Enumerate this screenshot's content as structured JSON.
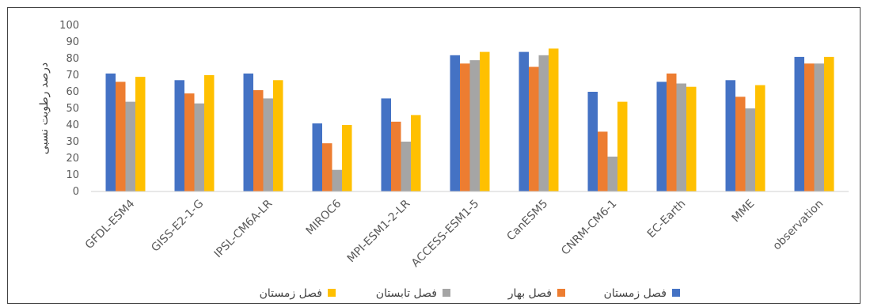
{
  "chart_data": {
    "type": "bar",
    "categories": [
      "GFDL-ESM4",
      "GISS-E2-1-G",
      "IPSL-CM6A-LR",
      "MIROC6",
      "MPI-ESM1-2-LR",
      "ACCESS-ESM1-5",
      "CanESM5",
      "CNRM-CM6-1",
      "EC-Earth",
      "MME",
      "observation"
    ],
    "series": [
      {
        "name": "فصل زمستان",
        "color": "#4472C4",
        "values": [
          71,
          67,
          71,
          41,
          56,
          82,
          84,
          60,
          66,
          67,
          81
        ]
      },
      {
        "name": "فصل بهار",
        "color": "#ED7D31",
        "values": [
          66,
          59,
          61,
          29,
          42,
          77,
          75,
          36,
          71,
          57,
          77
        ]
      },
      {
        "name": "فصل تابستان",
        "color": "#A5A5A5",
        "values": [
          54,
          53,
          56,
          13,
          30,
          79,
          82,
          21,
          65,
          50,
          77
        ]
      },
      {
        "name": "فصل زمستان",
        "color": "#FFC000",
        "values": [
          69,
          70,
          67,
          40,
          46,
          84,
          86,
          54,
          63,
          64,
          81
        ]
      }
    ],
    "ylabel": "درصد رطوبت نسبی",
    "xlabel": "",
    "ylim": [
      0,
      100
    ],
    "yticks": [
      0,
      10,
      20,
      30,
      40,
      50,
      60,
      70,
      80,
      90,
      100
    ],
    "grid": false,
    "legend": "bottom"
  }
}
